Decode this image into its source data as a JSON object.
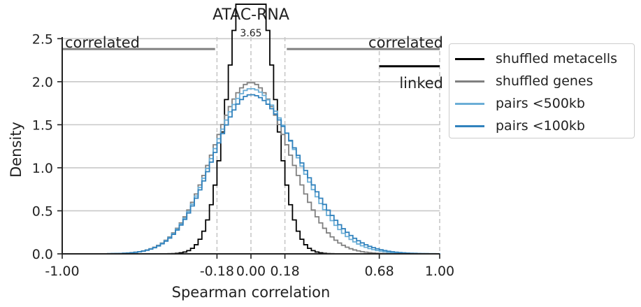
{
  "chart_data": {
    "type": "step-histogram",
    "title": "ATAC-RNA",
    "xlabel": "Spearman correlation",
    "ylabel": "Density",
    "xlim": [
      -1.0,
      1.0
    ],
    "ylim": [
      0,
      2.6
    ],
    "x_ticks": [
      -1.0,
      -0.18,
      0.0,
      0.18,
      0.68,
      1.0
    ],
    "x_tick_labels": [
      "-1.00",
      "-0.18",
      "0.00",
      "0.18",
      "0.68",
      "1.00"
    ],
    "y_ticks": [
      0.0,
      0.5,
      1.0,
      1.5,
      2.0,
      2.5
    ],
    "y_tick_labels": [
      "0.0",
      "0.5",
      "1.0",
      "1.5",
      "2.0",
      "2.5"
    ],
    "grid": "horizontal",
    "vlines": [
      -1.0,
      -0.18,
      0.0,
      0.18,
      0.68,
      1.0
    ],
    "peak_annotation": {
      "text": "3.65",
      "x": 0.0,
      "y": 3.65
    },
    "region_labels": [
      {
        "text": "correlated",
        "side": "left"
      },
      {
        "text": "correlated",
        "side": "right"
      },
      {
        "text": "linked",
        "side": "right"
      }
    ],
    "region_bars": [
      {
        "x_start": -1.0,
        "x_end": -0.19,
        "y": 2.38,
        "color": "#808080"
      },
      {
        "x_start": 0.19,
        "x_end": 1.0,
        "y": 2.38,
        "color": "#808080"
      },
      {
        "x_start": 0.68,
        "x_end": 1.0,
        "y": 2.18,
        "color": "#000000"
      }
    ],
    "series": [
      {
        "name": "shuffled metacells",
        "color": "#000000",
        "shape": "gaussian",
        "mean": 0.0,
        "sd": 0.109,
        "peak": 3.65
      },
      {
        "name": "shuffled genes",
        "color": "#808080",
        "shape": "gaussian",
        "mean": 0.0,
        "sd": 0.2,
        "peak": 1.99
      },
      {
        "name": "pairs <500kb",
        "color": "#6baed6",
        "shape": "gaussian",
        "mean": 0.0,
        "sd_left": 0.2,
        "sd_right": 0.24,
        "peak": 1.92
      },
      {
        "name": "pairs <100kb",
        "color": "#3182bd",
        "shape": "gaussian",
        "mean": 0.0,
        "sd_left": 0.2,
        "sd_right": 0.255,
        "peak": 1.85
      }
    ],
    "bin_width": 0.02
  },
  "legend": {
    "items": [
      {
        "label": "shuffled metacells",
        "color": "#000000"
      },
      {
        "label": "shuffled genes",
        "color": "#808080"
      },
      {
        "label": "pairs <500kb",
        "color": "#6baed6"
      },
      {
        "label": "pairs <100kb",
        "color": "#3182bd"
      }
    ]
  }
}
